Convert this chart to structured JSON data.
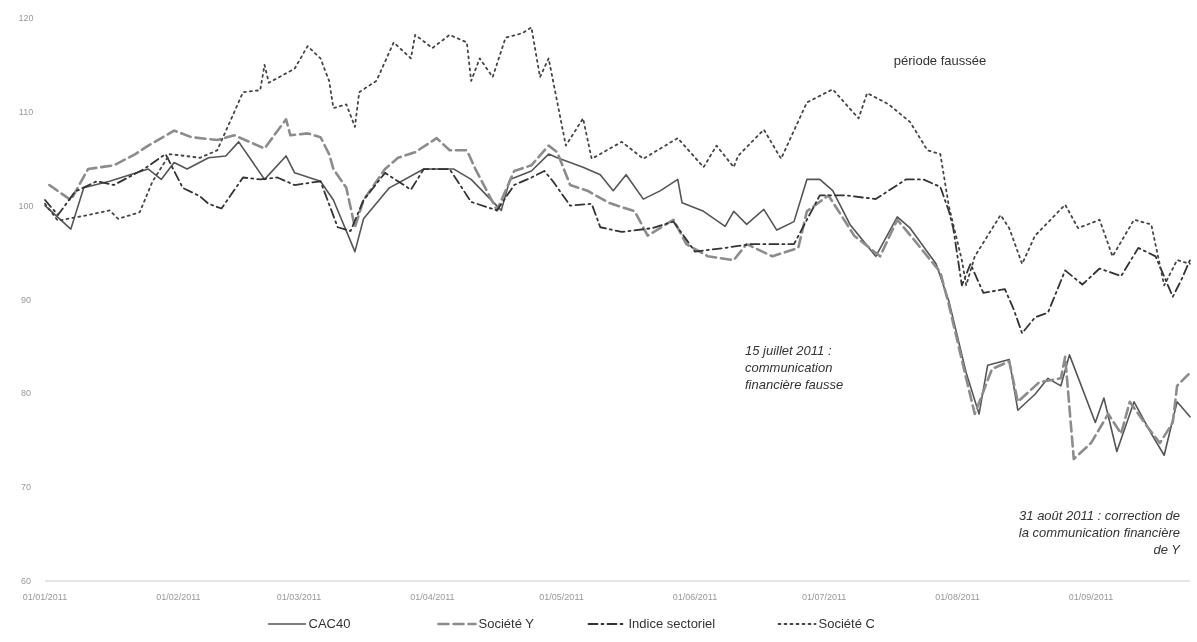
{
  "chart_data": {
    "type": "line",
    "xlim": [
      "2011-01-01",
      "2011-09-24"
    ],
    "xticks": [
      {
        "value": "2011-01-01",
        "label": "01/01/2011"
      },
      {
        "value": "2011-02-01",
        "label": "01/02/2011"
      },
      {
        "value": "2011-03-01",
        "label": "01/03/2011"
      },
      {
        "value": "2011-04-01",
        "label": "01/04/2011"
      },
      {
        "value": "2011-05-01",
        "label": "01/05/2011"
      },
      {
        "value": "2011-06-01",
        "label": "01/06/2011"
      },
      {
        "value": "2011-07-01",
        "label": "01/07/2011"
      },
      {
        "value": "2011-08-01",
        "label": "01/08/2011"
      },
      {
        "value": "2011-09-01",
        "label": "01/09/2011"
      }
    ],
    "ylim": [
      60,
      120
    ],
    "yticks": [
      60,
      70,
      80,
      90,
      100,
      110,
      120
    ],
    "grid": false,
    "legend": "bottom",
    "annotations": [
      "période faussée",
      "15 juillet 2011 : communication financière fausse",
      "31 août 2011 : correction de la communication financière de Y"
    ],
    "series": [
      {
        "name": "CAC40",
        "color": "#555555",
        "line_style": "solid",
        "x": [
          "2011-01-01",
          "2011-01-07",
          "2011-01-10",
          "2011-01-16",
          "2011-01-25",
          "2011-01-28",
          "2011-01-31",
          "2011-02-03",
          "2011-02-08",
          "2011-02-12",
          "2011-02-15",
          "2011-02-21",
          "2011-02-26",
          "2011-02-28",
          "2011-03-06",
          "2011-03-09",
          "2011-03-14",
          "2011-03-16",
          "2011-03-22",
          "2011-03-30",
          "2011-04-06",
          "2011-04-10",
          "2011-04-17",
          "2011-04-19",
          "2011-04-24",
          "2011-04-28",
          "2011-04-30",
          "2011-05-06",
          "2011-05-10",
          "2011-05-13",
          "2011-05-16",
          "2011-05-20",
          "2011-05-24",
          "2011-05-28",
          "2011-05-29",
          "2011-06-03",
          "2011-06-08",
          "2011-06-10",
          "2011-06-13",
          "2011-06-17",
          "2011-06-20",
          "2011-06-24",
          "2011-06-27",
          "2011-06-30",
          "2011-07-03",
          "2011-07-07",
          "2011-07-13",
          "2011-07-18",
          "2011-07-21",
          "2011-07-27",
          "2011-07-30",
          "2011-08-03",
          "2011-08-06",
          "2011-08-08",
          "2011-08-13",
          "2011-08-15",
          "2011-08-19",
          "2011-08-22",
          "2011-08-25",
          "2011-08-27",
          "2011-09-02",
          "2011-09-04",
          "2011-09-07",
          "2011-09-11",
          "2011-09-15",
          "2011-09-18",
          "2011-09-21",
          "2011-09-24"
        ],
        "values": [
          100,
          97.5,
          101.9,
          102.6,
          103.9,
          102.8,
          104.6,
          103.9,
          105.1,
          105.3,
          106.8,
          102.8,
          105.3,
          103.5,
          102.6,
          100.6,
          95.1,
          98.6,
          101.9,
          103.9,
          103.9,
          102.8,
          99.5,
          102.8,
          103.7,
          105.5,
          105.1,
          104.1,
          103.3,
          101.6,
          103.3,
          100.7,
          101.6,
          102.8,
          100.3,
          99.4,
          97.8,
          99.4,
          98.0,
          99.6,
          97.4,
          98.3,
          102.8,
          102.8,
          101.6,
          98.0,
          94.6,
          98.8,
          97.6,
          93.8,
          89.8,
          82.2,
          77.8,
          83.0,
          83.6,
          78.2,
          79.9,
          81.6,
          80.8,
          84.1,
          76.9,
          79.5,
          73.8,
          79.1,
          75.7,
          73.4,
          79.1,
          77.5
        ]
      },
      {
        "name": "Société Y",
        "color": "#8c8c8c",
        "line_style": "dashed",
        "x": [
          "2011-01-02",
          "2011-01-07",
          "2011-01-11",
          "2011-01-17",
          "2011-01-22",
          "2011-01-25",
          "2011-01-31",
          "2011-02-04",
          "2011-02-10",
          "2011-02-14",
          "2011-02-21",
          "2011-02-26",
          "2011-02-27",
          "2011-03-03",
          "2011-03-06",
          "2011-03-08",
          "2011-03-09",
          "2011-03-12",
          "2011-03-14",
          "2011-03-16",
          "2011-03-21",
          "2011-03-24",
          "2011-03-28",
          "2011-04-02",
          "2011-04-05",
          "2011-04-09",
          "2011-04-11",
          "2011-04-16",
          "2011-04-20",
          "2011-04-24",
          "2011-04-28",
          "2011-04-30",
          "2011-05-03",
          "2011-05-07",
          "2011-05-12",
          "2011-05-18",
          "2011-05-21",
          "2011-05-27",
          "2011-05-30",
          "2011-06-04",
          "2011-06-10",
          "2011-06-13",
          "2011-06-19",
          "2011-06-25",
          "2011-06-27",
          "2011-07-02",
          "2011-07-08",
          "2011-07-14",
          "2011-07-18",
          "2011-07-22",
          "2011-07-28",
          "2011-07-30",
          "2011-08-03",
          "2011-08-05",
          "2011-08-09",
          "2011-08-13",
          "2011-08-15",
          "2011-08-20",
          "2011-08-25",
          "2011-08-26",
          "2011-08-28",
          "2011-09-01",
          "2011-09-05",
          "2011-09-08",
          "2011-09-10",
          "2011-09-14",
          "2011-09-17",
          "2011-09-20",
          "2011-09-21",
          "2011-09-24"
        ],
        "values": [
          102.2,
          100.6,
          103.9,
          104.3,
          105.5,
          106.4,
          108.0,
          107.3,
          107.0,
          107.5,
          106.1,
          109.2,
          107.5,
          107.7,
          107.3,
          105.5,
          103.9,
          101.9,
          97.7,
          100.6,
          103.9,
          105.1,
          105.7,
          107.2,
          105.9,
          105.9,
          103.9,
          99.5,
          103.7,
          104.3,
          106.4,
          105.7,
          102.2,
          101.6,
          100.3,
          99.4,
          96.8,
          98.5,
          95.9,
          94.6,
          94.2,
          95.9,
          94.6,
          95.5,
          99.4,
          101.1,
          96.8,
          94.6,
          98.5,
          96.3,
          92.9,
          89.4,
          81.6,
          77.8,
          82.6,
          83.4,
          79.1,
          81.2,
          81.6,
          83.9,
          73.0,
          74.7,
          77.8,
          75.7,
          79.1,
          76.5,
          74.7,
          76.9,
          80.8,
          82.2
        ]
      },
      {
        "name": "Indice sectoriel",
        "color": "#333333",
        "line_style": "dashdot",
        "x": [
          "2011-01-01",
          "2011-01-04",
          "2011-01-08",
          "2011-01-13",
          "2011-01-17",
          "2011-01-24",
          "2011-01-29",
          "2011-02-02",
          "2011-02-06",
          "2011-02-08",
          "2011-02-11",
          "2011-02-16",
          "2011-02-20",
          "2011-02-24",
          "2011-02-28",
          "2011-03-06",
          "2011-03-10",
          "2011-03-13",
          "2011-03-16",
          "2011-03-21",
          "2011-03-27",
          "2011-03-30",
          "2011-04-05",
          "2011-04-10",
          "2011-04-16",
          "2011-04-20",
          "2011-04-24",
          "2011-04-27",
          "2011-04-29",
          "2011-05-03",
          "2011-05-08",
          "2011-05-10",
          "2011-05-15",
          "2011-05-22",
          "2011-05-27",
          "2011-06-01",
          "2011-06-08",
          "2011-06-14",
          "2011-06-24",
          "2011-06-30",
          "2011-07-06",
          "2011-07-13",
          "2011-07-20",
          "2011-07-24",
          "2011-07-28",
          "2011-07-30",
          "2011-07-31",
          "2011-08-02",
          "2011-08-04",
          "2011-08-07",
          "2011-08-12",
          "2011-08-14",
          "2011-08-16",
          "2011-08-19",
          "2011-08-22",
          "2011-08-26",
          "2011-08-30",
          "2011-09-03",
          "2011-09-08",
          "2011-09-12",
          "2011-09-16",
          "2011-09-20",
          "2011-09-22",
          "2011-09-24"
        ],
        "values": [
          100.6,
          99.0,
          101.5,
          102.6,
          102.2,
          103.9,
          105.5,
          101.9,
          101.0,
          100.2,
          99.7,
          103.0,
          102.8,
          103.0,
          102.2,
          102.6,
          97.7,
          97.3,
          100.6,
          103.5,
          101.7,
          103.9,
          103.9,
          100.4,
          99.5,
          102.2,
          103.0,
          103.7,
          102.6,
          100.0,
          100.2,
          97.7,
          97.2,
          97.6,
          98.3,
          95.1,
          95.5,
          95.9,
          95.9,
          101.1,
          101.1,
          100.7,
          102.8,
          102.8,
          102.0,
          99.4,
          97.6,
          91.5,
          93.8,
          90.7,
          91.1,
          89.0,
          86.4,
          88.1,
          88.6,
          93.1,
          91.6,
          93.3,
          92.5,
          95.5,
          94.6,
          90.3,
          92.1,
          94.2
        ]
      },
      {
        "name": "Société C",
        "color": "#444444",
        "line_style": "dotted",
        "x": [
          "2011-01-01",
          "2011-01-04",
          "2011-01-11",
          "2011-01-16",
          "2011-01-18",
          "2011-01-23",
          "2011-01-26",
          "2011-01-30",
          "2011-02-06",
          "2011-02-10",
          "2011-02-14",
          "2011-02-16",
          "2011-02-20",
          "2011-02-21",
          "2011-02-22",
          "2011-02-28",
          "2011-03-03",
          "2011-03-06",
          "2011-03-08",
          "2011-03-09",
          "2011-03-12",
          "2011-03-14",
          "2011-03-15",
          "2011-03-19",
          "2011-03-23",
          "2011-03-27",
          "2011-03-28",
          "2011-04-01",
          "2011-04-05",
          "2011-04-09",
          "2011-04-10",
          "2011-04-12",
          "2011-04-15",
          "2011-04-18",
          "2011-04-22",
          "2011-04-24",
          "2011-04-26",
          "2011-04-28",
          "2011-05-02",
          "2011-05-06",
          "2011-05-08",
          "2011-05-15",
          "2011-05-20",
          "2011-05-28",
          "2011-06-03",
          "2011-06-06",
          "2011-06-10",
          "2011-06-11",
          "2011-06-17",
          "2011-06-21",
          "2011-06-27",
          "2011-07-03",
          "2011-07-09",
          "2011-07-11",
          "2011-07-16",
          "2011-07-21",
          "2011-07-25",
          "2011-07-28",
          "2011-07-30",
          "2011-08-02",
          "2011-08-03",
          "2011-08-05",
          "2011-08-11",
          "2011-08-13",
          "2011-08-16",
          "2011-08-19",
          "2011-08-26",
          "2011-08-29",
          "2011-09-03",
          "2011-09-06",
          "2011-09-11",
          "2011-09-15",
          "2011-09-18",
          "2011-09-21",
          "2011-09-24"
        ],
        "values": [
          100.2,
          98.4,
          99.0,
          99.5,
          98.6,
          99.3,
          102.6,
          105.5,
          105.1,
          105.9,
          110.0,
          112.1,
          112.3,
          115.0,
          113.1,
          114.6,
          117.0,
          115.7,
          113.3,
          110.4,
          110.8,
          108.4,
          112.1,
          113.3,
          117.4,
          115.7,
          118.2,
          116.8,
          118.2,
          117.4,
          113.3,
          115.7,
          113.7,
          117.9,
          118.4,
          119.0,
          113.7,
          115.7,
          106.4,
          109.3,
          105.0,
          106.8,
          105.0,
          107.2,
          104.1,
          106.4,
          104.1,
          105.3,
          108.1,
          105.0,
          111.0,
          112.4,
          109.3,
          112.0,
          110.8,
          108.9,
          105.9,
          105.5,
          99.9,
          94.2,
          91.5,
          94.6,
          99.0,
          97.6,
          93.8,
          96.8,
          100.1,
          97.6,
          98.5,
          94.6,
          98.5,
          98.0,
          91.5,
          94.2,
          93.8
        ]
      }
    ]
  }
}
